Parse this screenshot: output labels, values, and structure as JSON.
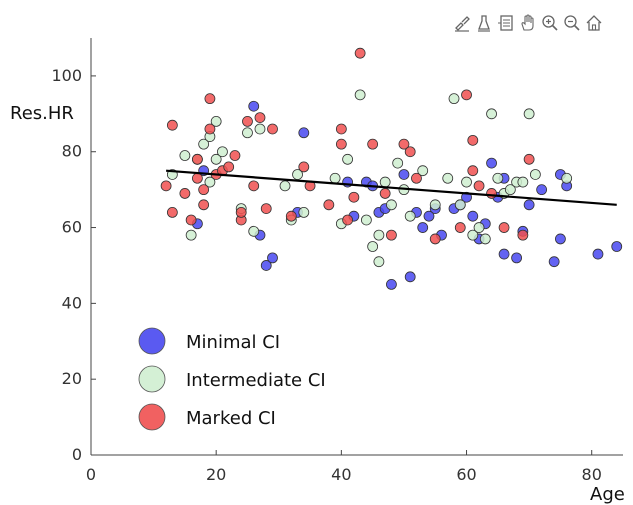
{
  "toolbar": {
    "icons": [
      "brush-icon",
      "data-tip-icon",
      "legend-icon",
      "pan-icon",
      "zoom-in-icon",
      "zoom-out-icon",
      "home-icon"
    ]
  },
  "chart_data": {
    "type": "scatter",
    "xlabel": "Age",
    "ylabel": "Res.HR",
    "xlim": [
      0,
      85
    ],
    "ylim": [
      0,
      110
    ],
    "xticks": [
      0,
      20,
      40,
      60,
      80
    ],
    "yticks": [
      0,
      20,
      40,
      60,
      80,
      100
    ],
    "grid": false,
    "legend_position": "lower-left",
    "series": [
      {
        "name": "Minimal CI",
        "color": "#4848f0",
        "points": [
          [
            17,
            61
          ],
          [
            18,
            75
          ],
          [
            26,
            92
          ],
          [
            27,
            58
          ],
          [
            28,
            50
          ],
          [
            29,
            52
          ],
          [
            34,
            85
          ],
          [
            33,
            64
          ],
          [
            41,
            72
          ],
          [
            42,
            63
          ],
          [
            44,
            72
          ],
          [
            45,
            71
          ],
          [
            46,
            64
          ],
          [
            47,
            65
          ],
          [
            48,
            45
          ],
          [
            50,
            74
          ],
          [
            51,
            47
          ],
          [
            52,
            64
          ],
          [
            53,
            60
          ],
          [
            54,
            63
          ],
          [
            55,
            65
          ],
          [
            56,
            58
          ],
          [
            58,
            65
          ],
          [
            59,
            66
          ],
          [
            61,
            63
          ],
          [
            62,
            57
          ],
          [
            63,
            61
          ],
          [
            64,
            77
          ],
          [
            66,
            73
          ],
          [
            66,
            53
          ],
          [
            68,
            52
          ],
          [
            69,
            59
          ],
          [
            70,
            66
          ],
          [
            72,
            70
          ],
          [
            74,
            51
          ],
          [
            75,
            57
          ],
          [
            75,
            74
          ],
          [
            76,
            71
          ],
          [
            81,
            53
          ],
          [
            84,
            55
          ],
          [
            65,
            68
          ],
          [
            60,
            68
          ]
        ]
      },
      {
        "name": "Intermediate CI",
        "color": "#cfeed0",
        "points": [
          [
            13,
            74
          ],
          [
            15,
            79
          ],
          [
            16,
            58
          ],
          [
            17,
            78
          ],
          [
            18,
            82
          ],
          [
            19,
            72
          ],
          [
            20,
            78
          ],
          [
            21,
            80
          ],
          [
            19,
            84
          ],
          [
            24,
            65
          ],
          [
            25,
            85
          ],
          [
            26,
            59
          ],
          [
            27,
            86
          ],
          [
            31,
            71
          ],
          [
            32,
            62
          ],
          [
            33,
            74
          ],
          [
            34,
            64
          ],
          [
            39,
            73
          ],
          [
            40,
            61
          ],
          [
            41,
            78
          ],
          [
            43,
            95
          ],
          [
            44,
            62
          ],
          [
            45,
            55
          ],
          [
            46,
            51
          ],
          [
            46,
            58
          ],
          [
            47,
            72
          ],
          [
            48,
            66
          ],
          [
            49,
            77
          ],
          [
            50,
            70
          ],
          [
            51,
            63
          ],
          [
            53,
            75
          ],
          [
            55,
            66
          ],
          [
            57,
            73
          ],
          [
            58,
            94
          ],
          [
            59,
            66
          ],
          [
            60,
            72
          ],
          [
            61,
            58
          ],
          [
            62,
            60
          ],
          [
            63,
            57
          ],
          [
            64,
            90
          ],
          [
            65,
            73
          ],
          [
            66,
            69
          ],
          [
            67,
            70
          ],
          [
            68,
            72
          ],
          [
            69,
            72
          ],
          [
            70,
            90
          ],
          [
            71,
            74
          ],
          [
            76,
            73
          ],
          [
            20,
            88
          ]
        ]
      },
      {
        "name": "Marked CI",
        "color": "#f05050",
        "points": [
          [
            12,
            71
          ],
          [
            13,
            64
          ],
          [
            13,
            87
          ],
          [
            15,
            69
          ],
          [
            16,
            62
          ],
          [
            17,
            73
          ],
          [
            17,
            78
          ],
          [
            18,
            66
          ],
          [
            18,
            70
          ],
          [
            19,
            94
          ],
          [
            19,
            86
          ],
          [
            20,
            74
          ],
          [
            21,
            75
          ],
          [
            22,
            76
          ],
          [
            23,
            79
          ],
          [
            24,
            62
          ],
          [
            24,
            64
          ],
          [
            25,
            88
          ],
          [
            26,
            71
          ],
          [
            27,
            89
          ],
          [
            28,
            65
          ],
          [
            29,
            86
          ],
          [
            32,
            63
          ],
          [
            34,
            76
          ],
          [
            35,
            71
          ],
          [
            38,
            66
          ],
          [
            40,
            86
          ],
          [
            40,
            82
          ],
          [
            41,
            62
          ],
          [
            42,
            68
          ],
          [
            43,
            106
          ],
          [
            45,
            82
          ],
          [
            47,
            69
          ],
          [
            48,
            58
          ],
          [
            50,
            82
          ],
          [
            51,
            80
          ],
          [
            52,
            73
          ],
          [
            55,
            57
          ],
          [
            59,
            60
          ],
          [
            60,
            95
          ],
          [
            61,
            75
          ],
          [
            61,
            83
          ],
          [
            62,
            71
          ],
          [
            64,
            69
          ],
          [
            66,
            60
          ],
          [
            69,
            58
          ],
          [
            70,
            78
          ]
        ]
      }
    ],
    "trendline": {
      "x": [
        12,
        84
      ],
      "y": [
        75,
        66
      ]
    }
  }
}
